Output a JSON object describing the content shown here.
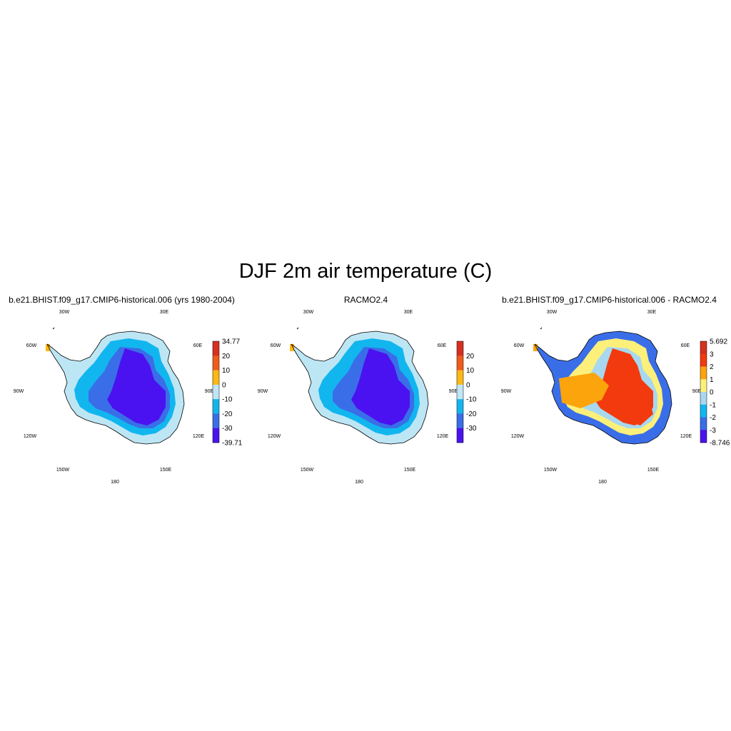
{
  "figure": {
    "title": "DJF 2m air temperature (C)"
  },
  "map_labels": [
    "30W",
    "30E",
    "60W",
    "60E",
    "90W",
    "90E",
    "120W",
    "120E",
    "150W",
    "150E",
    "180"
  ],
  "panels": [
    {
      "title": "b.e21.BHIST.f09_g17.CMIP6-historical.006 (yrs 1980-2004)",
      "colorbar": {
        "labels": [
          "34.77",
          "20",
          "10",
          "0",
          "-10",
          "-20",
          "-30",
          "-39.71"
        ],
        "colors": [
          "#d7301f",
          "#f25a1a",
          "#fdb813",
          "#bfe6f7",
          "#12b6ef",
          "#3a6ee8",
          "#4a12f0"
        ]
      },
      "palette": {
        "outer": "#bde6f5",
        "mid": "#12b6ef",
        "inner": "#3a6ee8",
        "core": "#4a12f0",
        "tip": "#fdb813"
      }
    },
    {
      "title": "RACMO2.4",
      "colorbar": {
        "labels": [
          "20",
          "10",
          "0",
          "-10",
          "-20",
          "-30"
        ],
        "colors": [
          "#d7301f",
          "#f25a1a",
          "#fdb813",
          "#bfe6f7",
          "#12b6ef",
          "#3a6ee8",
          "#4a12f0"
        ]
      },
      "palette": {
        "outer": "#bde6f5",
        "mid": "#12b6ef",
        "inner": "#3a6ee8",
        "core": "#4a12f0",
        "tip": "#fdb813"
      }
    },
    {
      "title": "b.e21.BHIST.f09_g17.CMIP6-historical.006 - RACMO2.4",
      "colorbar": {
        "labels": [
          "5.692",
          "3",
          "2",
          "1",
          "0",
          "-1",
          "-2",
          "-3",
          "-8.746"
        ],
        "colors": [
          "#d7301f",
          "#f23a0e",
          "#fca40c",
          "#fdf07a",
          "#a8d8ef",
          "#12b6ef",
          "#3a6ee8",
          "#4a12f0"
        ]
      },
      "palette": {
        "outer": "#3a6ee8",
        "mid": "#fdf07a",
        "inner": "#a8d8ef",
        "core": "#f23a0e",
        "tip": "#fca40c"
      }
    }
  ]
}
